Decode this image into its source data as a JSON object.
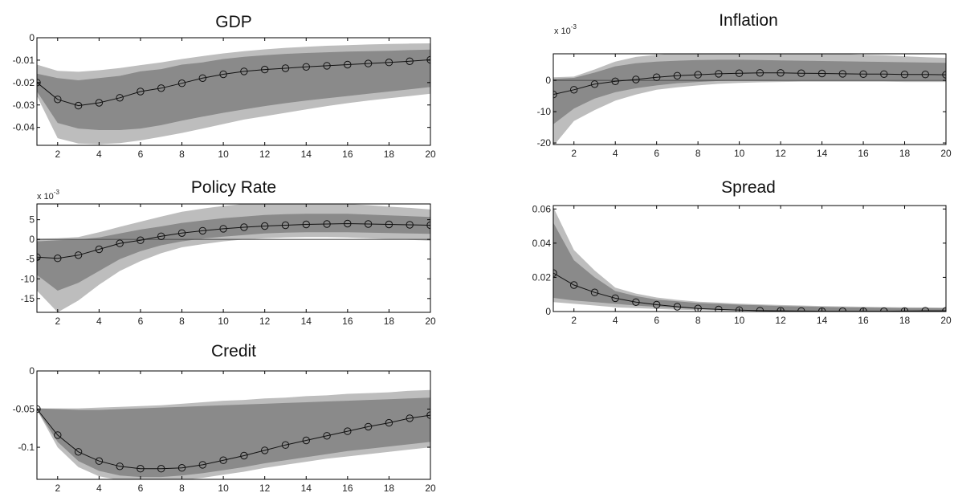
{
  "chart_data": [
    {
      "type": "area",
      "title": "GDP",
      "x": [
        1,
        2,
        3,
        4,
        5,
        6,
        7,
        8,
        9,
        10,
        11,
        12,
        13,
        14,
        15,
        16,
        17,
        18,
        19,
        20
      ],
      "xticks": [
        "2",
        "4",
        "6",
        "8",
        "10",
        "12",
        "14",
        "16",
        "18",
        "20"
      ],
      "xlim": [
        1,
        20
      ],
      "ylim": [
        -0.048,
        0
      ],
      "yticks": [
        0,
        -0.01,
        -0.02,
        -0.03,
        -0.04
      ],
      "ytick_labels": [
        "0",
        "-0.01",
        "-0.02",
        "-0.03",
        "-0.04"
      ],
      "multiplier": null,
      "zero_line": false,
      "series": [
        {
          "values": [
            -0.02,
            -0.0275,
            -0.0303,
            -0.029,
            -0.0268,
            -0.024,
            -0.0225,
            -0.0203,
            -0.018,
            -0.0163,
            -0.015,
            -0.0142,
            -0.0136,
            -0.013,
            -0.0125,
            -0.012,
            -0.0115,
            -0.011,
            -0.0105,
            -0.0098
          ]
        },
        {
          "band": "inner",
          "upper": [
            -0.016,
            -0.018,
            -0.019,
            -0.018,
            -0.017,
            -0.015,
            -0.014,
            -0.012,
            -0.011,
            -0.0095,
            -0.0085,
            -0.0078,
            -0.0072,
            -0.0068,
            -0.0065,
            -0.0062,
            -0.006,
            -0.0058,
            -0.0055,
            -0.0053
          ],
          "lower": [
            -0.024,
            -0.038,
            -0.0405,
            -0.0412,
            -0.0412,
            -0.0405,
            -0.039,
            -0.037,
            -0.0352,
            -0.0335,
            -0.032,
            -0.0305,
            -0.0292,
            -0.028,
            -0.027,
            -0.026,
            -0.025,
            -0.024,
            -0.023,
            -0.022
          ]
        },
        {
          "band": "outer",
          "upper": [
            -0.012,
            -0.0148,
            -0.0152,
            -0.0145,
            -0.0135,
            -0.0122,
            -0.011,
            -0.0095,
            -0.0082,
            -0.007,
            -0.006,
            -0.0052,
            -0.0045,
            -0.004,
            -0.0036,
            -0.0033,
            -0.003,
            -0.0028,
            -0.0026,
            -0.0025
          ],
          "lower": [
            -0.026,
            -0.0448,
            -0.0472,
            -0.0475,
            -0.047,
            -0.0458,
            -0.0442,
            -0.0425,
            -0.0405,
            -0.0385,
            -0.0365,
            -0.035,
            -0.0335,
            -0.032,
            -0.0305,
            -0.0292,
            -0.028,
            -0.027,
            -0.026,
            -0.025
          ]
        }
      ]
    },
    {
      "type": "area",
      "title": "Inflation",
      "x": [
        1,
        2,
        3,
        4,
        5,
        6,
        7,
        8,
        9,
        10,
        11,
        12,
        13,
        14,
        15,
        16,
        17,
        18,
        19,
        20
      ],
      "xticks": [
        "2",
        "4",
        "6",
        "8",
        "10",
        "12",
        "14",
        "16",
        "18",
        "20"
      ],
      "xlim": [
        1,
        20
      ],
      "ylim": [
        -20.5,
        8.5
      ],
      "yticks": [
        0,
        -10,
        -20
      ],
      "ytick_labels": [
        "0",
        "-10",
        "-20"
      ],
      "multiplier": {
        "base": "x 10",
        "exponent": "-3"
      },
      "zero_line": true,
      "series": [
        {
          "values": [
            -4.5,
            -3,
            -1.2,
            -0.3,
            0.3,
            1,
            1.5,
            1.8,
            2.1,
            2.3,
            2.4,
            2.4,
            2.3,
            2.2,
            2.1,
            2,
            2,
            1.9,
            1.9,
            1.8
          ]
        },
        {
          "band": "inner",
          "upper": [
            0.5,
            0.8,
            2.5,
            4.5,
            5.5,
            6,
            6.3,
            6.5,
            6.6,
            6.6,
            6.5,
            6.4,
            6.3,
            6.2,
            6.1,
            6,
            5.9,
            5.8,
            5.7,
            5.6
          ],
          "lower": [
            -14,
            -9,
            -5.8,
            -3.8,
            -2.5,
            -1.6,
            -0.9,
            -0.5,
            -0.2,
            0,
            0.1,
            0.2,
            0.2,
            0.2,
            0.2,
            0.2,
            0.2,
            0.2,
            0.2,
            0.2
          ]
        },
        {
          "band": "outer",
          "upper": [
            1,
            1.2,
            3.5,
            6,
            7.5,
            8.2,
            8.7,
            9,
            9.1,
            9.1,
            9.1,
            9.0,
            8.9,
            8.7,
            8.5,
            8.2,
            8,
            7.7,
            7.4,
            7.2
          ],
          "lower": [
            -21,
            -13,
            -9.5,
            -6.5,
            -4.5,
            -3,
            -2.2,
            -1.6,
            -1.1,
            -0.8,
            -0.6,
            -0.5,
            -0.4,
            -0.4,
            -0.4,
            -0.4,
            -0.4,
            -0.5,
            -0.5,
            -0.5
          ]
        }
      ]
    },
    {
      "type": "area",
      "title": "Policy Rate",
      "x": [
        1,
        2,
        3,
        4,
        5,
        6,
        7,
        8,
        9,
        10,
        11,
        12,
        13,
        14,
        15,
        16,
        17,
        18,
        19,
        20
      ],
      "xticks": [
        "2",
        "4",
        "6",
        "8",
        "10",
        "12",
        "14",
        "16",
        "18",
        "20"
      ],
      "xlim": [
        1,
        20
      ],
      "ylim": [
        -18.5,
        9
      ],
      "yticks": [
        5,
        0,
        -5,
        -10,
        -15
      ],
      "ytick_labels": [
        "5",
        "0",
        "-5",
        "-10",
        "-15"
      ],
      "multiplier": {
        "base": "x 10",
        "exponent": "-3"
      },
      "zero_line": true,
      "series": [
        {
          "values": [
            -4.5,
            -4.8,
            -4,
            -2.5,
            -1,
            -0.2,
            0.8,
            1.6,
            2.2,
            2.7,
            3.1,
            3.4,
            3.6,
            3.8,
            3.9,
            4,
            3.9,
            3.8,
            3.7,
            3.6
          ]
        },
        {
          "band": "inner",
          "upper": [
            -0.5,
            -0.2,
            0,
            0.5,
            1.5,
            2.5,
            3.3,
            4.2,
            4.8,
            5.4,
            5.8,
            6.2,
            6.4,
            6.5,
            6.5,
            6.5,
            6.3,
            6.1,
            5.9,
            5.7
          ],
          "lower": [
            -9,
            -13,
            -11,
            -8,
            -5,
            -3,
            -1.5,
            -0.5,
            0.2,
            0.7,
            1.1,
            1.5,
            1.7,
            1.8,
            1.8,
            1.8,
            1.7,
            1.6,
            1.5,
            1.4
          ]
        },
        {
          "band": "outer",
          "upper": [
            0.2,
            0.3,
            0.6,
            1.8,
            3.2,
            4.5,
            5.8,
            7,
            7.8,
            8.5,
            9,
            9.2,
            9.3,
            9.3,
            9.2,
            9.0,
            8.7,
            8.3,
            8.0,
            7.6
          ],
          "lower": [
            -13,
            -18.5,
            -15.5,
            -11.5,
            -8,
            -5.5,
            -3.5,
            -2,
            -1.2,
            -0.5,
            0,
            0.3,
            0.5,
            0.6,
            0.6,
            0.5,
            0.3,
            0.1,
            -0.1,
            -0.3
          ]
        }
      ]
    },
    {
      "type": "area",
      "title": "Spread",
      "x": [
        1,
        2,
        3,
        4,
        5,
        6,
        7,
        8,
        9,
        10,
        11,
        12,
        13,
        14,
        15,
        16,
        17,
        18,
        19,
        20
      ],
      "xticks": [
        "2",
        "4",
        "6",
        "8",
        "10",
        "12",
        "14",
        "16",
        "18",
        "20"
      ],
      "xlim": [
        1,
        20
      ],
      "ylim": [
        0,
        0.062
      ],
      "yticks": [
        0.06,
        0.04,
        0.02,
        0
      ],
      "ytick_labels": [
        "0.06",
        "0.04",
        "0.02",
        "0"
      ],
      "multiplier": null,
      "zero_line": false,
      "series": [
        {
          "values": [
            0.0225,
            0.0155,
            0.0112,
            0.0078,
            0.0055,
            0.004,
            0.0028,
            0.0018,
            0.0012,
            0.0008,
            0.0005,
            0.0004,
            0.0003,
            0.0002,
            0.0002,
            0.0002,
            0.0002,
            0.0003,
            0.0004,
            0.0004
          ]
        },
        {
          "band": "inner",
          "upper": [
            0.052,
            0.03,
            0.02,
            0.012,
            0.009,
            0.007,
            0.006,
            0.005,
            0.0045,
            0.004,
            0.0036,
            0.0032,
            0.003,
            0.0027,
            0.0025,
            0.0023,
            0.0022,
            0.002,
            0.002,
            0.0019
          ],
          "lower": [
            0.008,
            0.0065,
            0.0055,
            0.0045,
            0.0035,
            0.0027,
            0.002,
            0.0015,
            0.0011,
            0.0008,
            0.0006,
            0.0005,
            0.0004,
            0.0003,
            0.0003,
            0.0002,
            0.0002,
            0.0002,
            0.0002,
            0.0002
          ]
        },
        {
          "band": "outer",
          "upper": [
            0.061,
            0.036,
            0.024,
            0.014,
            0.0105,
            0.0082,
            0.0068,
            0.0058,
            0.0052,
            0.0046,
            0.0042,
            0.0038,
            0.0035,
            0.0032,
            0.003,
            0.0028,
            0.0026,
            0.0025,
            0.0024,
            0.0023
          ],
          "lower": [
            0.0055,
            0.0045,
            0.0035,
            0.0025,
            0.002,
            0.0015,
            0.0011,
            0.0008,
            0.0006,
            0.0005,
            0.0004,
            0.0003,
            0.0002,
            0.0002,
            0.0001,
            0.0001,
            0.0001,
            0.0001,
            0.0001,
            0.0001
          ]
        }
      ]
    },
    {
      "type": "area",
      "title": "Credit",
      "x": [
        1,
        2,
        3,
        4,
        5,
        6,
        7,
        8,
        9,
        10,
        11,
        12,
        13,
        14,
        15,
        16,
        17,
        18,
        19,
        20
      ],
      "xticks": [
        "2",
        "4",
        "6",
        "8",
        "10",
        "12",
        "14",
        "16",
        "18",
        "20"
      ],
      "xlim": [
        1,
        20
      ],
      "ylim": [
        -0.142,
        0
      ],
      "yticks": [
        0,
        -0.05,
        -0.1
      ],
      "ytick_labels": [
        "0",
        "-0.05",
        "-0.1"
      ],
      "multiplier": null,
      "zero_line": false,
      "series": [
        {
          "values": [
            -0.05,
            -0.084,
            -0.106,
            -0.118,
            -0.125,
            -0.128,
            -0.128,
            -0.127,
            -0.123,
            -0.117,
            -0.111,
            -0.104,
            -0.097,
            -0.091,
            -0.085,
            -0.079,
            -0.073,
            -0.068,
            -0.062,
            -0.058
          ]
        },
        {
          "band": "inner",
          "upper": [
            -0.049,
            -0.05,
            -0.051,
            -0.051,
            -0.05,
            -0.049,
            -0.048,
            -0.047,
            -0.046,
            -0.045,
            -0.044,
            -0.043,
            -0.042,
            -0.041,
            -0.04,
            -0.039,
            -0.038,
            -0.037,
            -0.036,
            -0.035
          ],
          "lower": [
            -0.051,
            -0.093,
            -0.118,
            -0.131,
            -0.137,
            -0.139,
            -0.139,
            -0.137,
            -0.134,
            -0.13,
            -0.126,
            -0.121,
            -0.117,
            -0.113,
            -0.109,
            -0.105,
            -0.102,
            -0.099,
            -0.096,
            -0.093
          ]
        },
        {
          "band": "outer",
          "upper": [
            -0.049,
            -0.049,
            -0.049,
            -0.048,
            -0.047,
            -0.046,
            -0.045,
            -0.043,
            -0.041,
            -0.039,
            -0.038,
            -0.036,
            -0.035,
            -0.033,
            -0.032,
            -0.03,
            -0.029,
            -0.028,
            -0.026,
            -0.025
          ],
          "lower": [
            -0.051,
            -0.1,
            -0.126,
            -0.138,
            -0.143,
            -0.145,
            -0.145,
            -0.143,
            -0.14,
            -0.136,
            -0.132,
            -0.127,
            -0.123,
            -0.119,
            -0.115,
            -0.112,
            -0.109,
            -0.106,
            -0.103,
            -0.1
          ]
        }
      ]
    }
  ],
  "colors": {
    "outer_band": "#bdbdbd",
    "inner_band": "#8a8a8a",
    "line": "#111111",
    "zero_line": "#555555",
    "axes": "#000000"
  }
}
